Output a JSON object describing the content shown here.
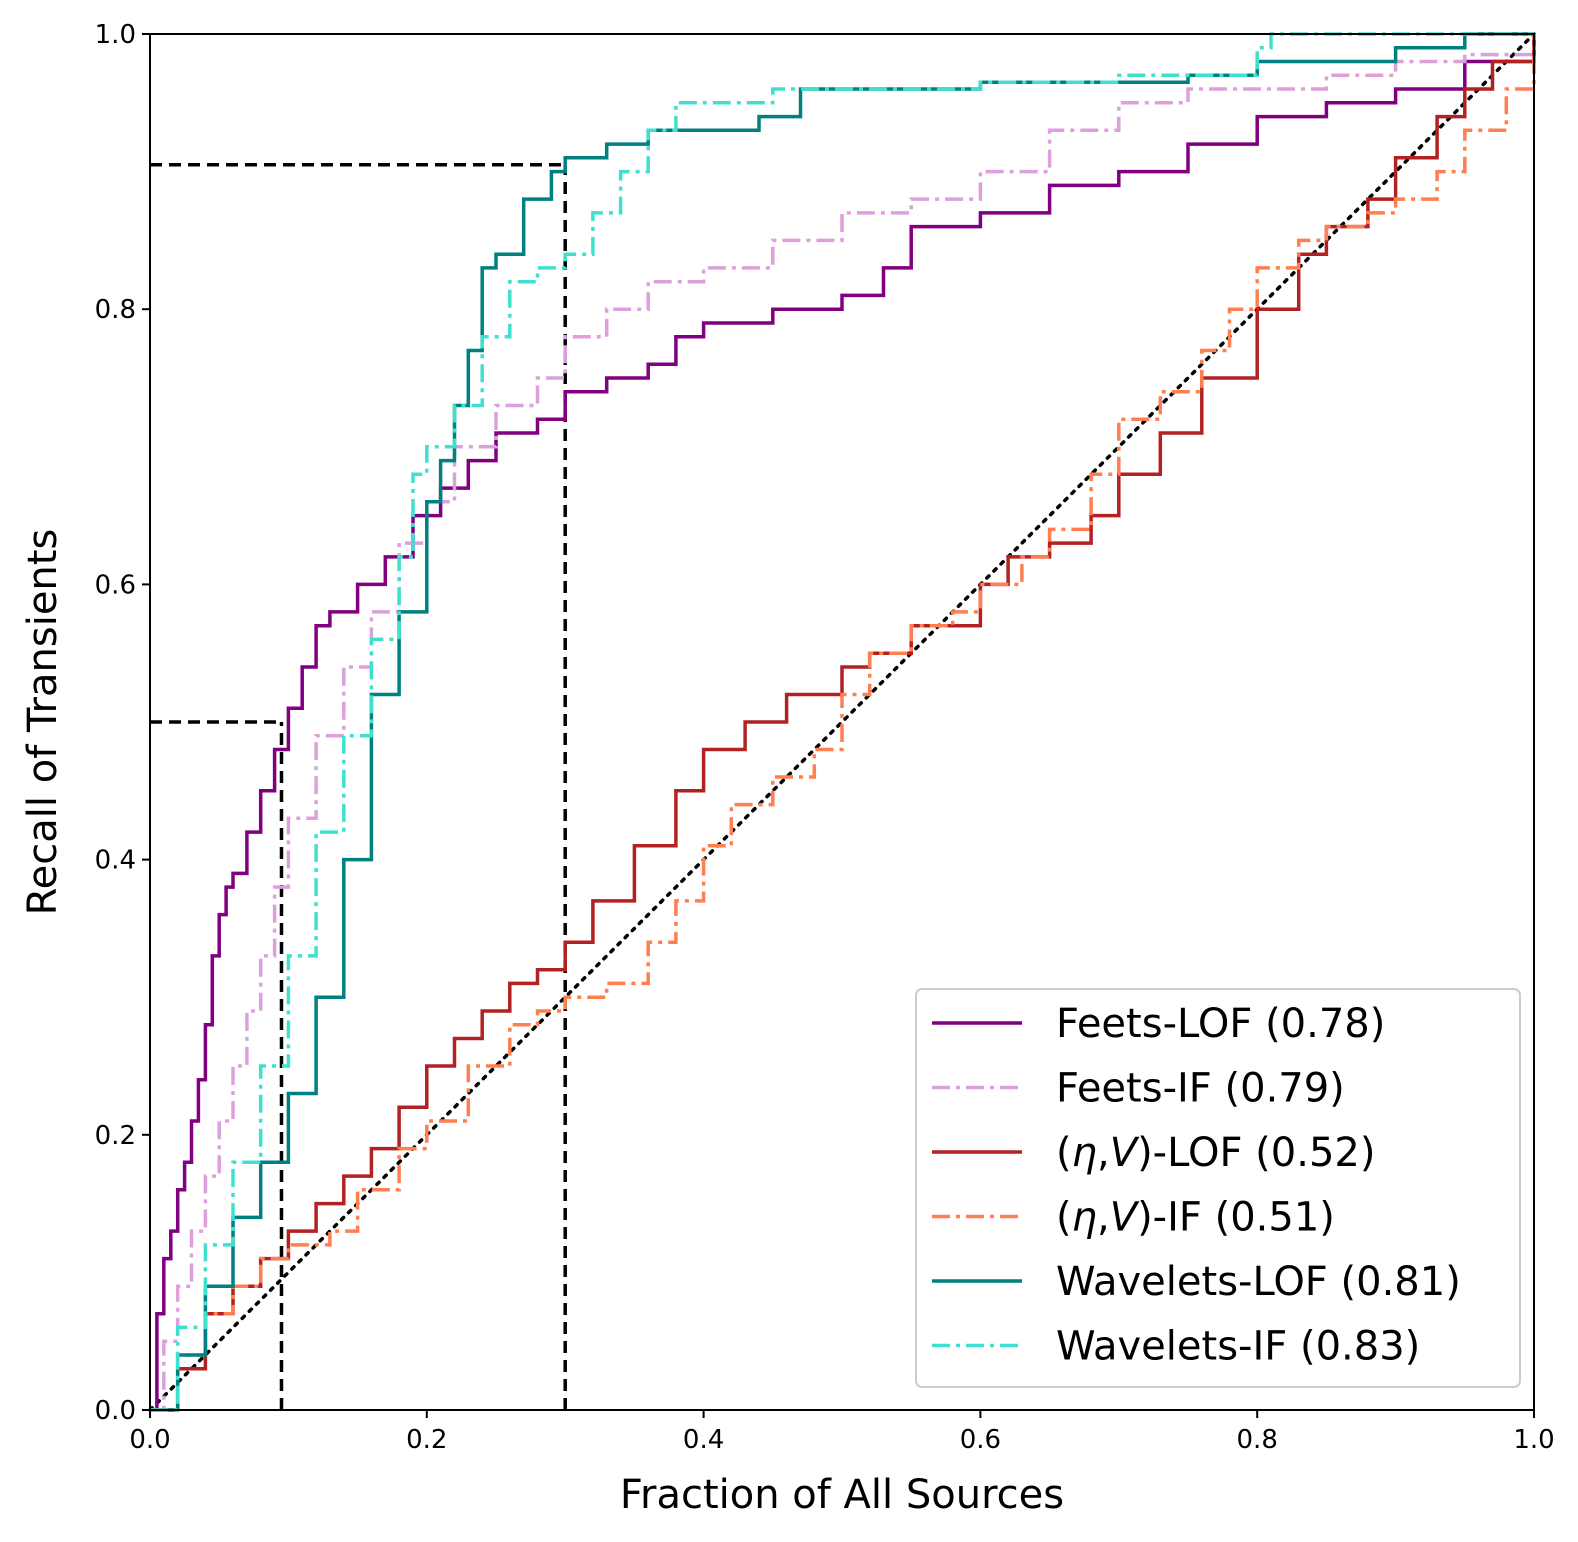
{
  "chart_data": {
    "type": "line",
    "title": "",
    "xlabel": "Fraction of All Sources",
    "ylabel": "Recall of Transients",
    "xlim": [
      0,
      1
    ],
    "ylim": [
      0,
      1
    ],
    "xticks": [
      "0.0",
      "0.2",
      "0.4",
      "0.6",
      "0.8",
      "1.0"
    ],
    "yticks": [
      "0.0",
      "0.2",
      "0.4",
      "0.6",
      "0.8",
      "1.0"
    ],
    "grid": false,
    "legend_position": "lower-right",
    "colors": {
      "feets_lof": "#800080",
      "feets_if": "#dda0dd",
      "eta_v_lof": "#b22222",
      "eta_v_if": "#ff7f50",
      "wavelets_lof": "#008080",
      "wavelets_if": "#40e0d0"
    },
    "series": [
      {
        "name": "Feets-LOF (0.78)",
        "name_parts": [
          "Feets-LOF (0.78)"
        ],
        "color": "#800080",
        "dash": "solid",
        "x": [
          0,
          0.005,
          0.01,
          0.015,
          0.02,
          0.025,
          0.03,
          0.035,
          0.04,
          0.045,
          0.05,
          0.055,
          0.06,
          0.07,
          0.08,
          0.09,
          0.1,
          0.11,
          0.12,
          0.13,
          0.15,
          0.17,
          0.19,
          0.21,
          0.23,
          0.25,
          0.28,
          0.3,
          0.33,
          0.36,
          0.38,
          0.4,
          0.45,
          0.5,
          0.53,
          0.55,
          0.6,
          0.65,
          0.7,
          0.75,
          0.8,
          0.85,
          0.9,
          0.95,
          1.0
        ],
        "y": [
          0,
          0.07,
          0.11,
          0.13,
          0.16,
          0.18,
          0.21,
          0.24,
          0.28,
          0.33,
          0.36,
          0.38,
          0.39,
          0.42,
          0.45,
          0.48,
          0.51,
          0.54,
          0.57,
          0.58,
          0.6,
          0.62,
          0.65,
          0.67,
          0.69,
          0.71,
          0.72,
          0.74,
          0.75,
          0.76,
          0.78,
          0.79,
          0.8,
          0.81,
          0.83,
          0.86,
          0.87,
          0.89,
          0.9,
          0.92,
          0.94,
          0.95,
          0.96,
          0.98,
          1.0
        ]
      },
      {
        "name": "Feets-IF (0.79)",
        "name_parts": [
          "Feets-IF (0.79)"
        ],
        "color": "#dda0dd",
        "dash": "dashdot",
        "x": [
          0,
          0.01,
          0.02,
          0.03,
          0.04,
          0.05,
          0.06,
          0.07,
          0.08,
          0.09,
          0.1,
          0.12,
          0.14,
          0.16,
          0.18,
          0.2,
          0.22,
          0.25,
          0.28,
          0.3,
          0.33,
          0.36,
          0.4,
          0.45,
          0.5,
          0.55,
          0.6,
          0.65,
          0.7,
          0.75,
          0.8,
          0.85,
          0.9,
          0.95,
          1.0
        ],
        "y": [
          0,
          0.05,
          0.09,
          0.13,
          0.17,
          0.21,
          0.25,
          0.29,
          0.33,
          0.38,
          0.43,
          0.49,
          0.54,
          0.58,
          0.63,
          0.66,
          0.7,
          0.73,
          0.75,
          0.78,
          0.8,
          0.82,
          0.83,
          0.85,
          0.87,
          0.88,
          0.9,
          0.93,
          0.95,
          0.96,
          0.96,
          0.97,
          0.98,
          0.985,
          1.0
        ]
      },
      {
        "name": "(η,V)-LOF (0.52)",
        "name_parts": [
          "(",
          "η",
          ",",
          "V",
          ")-LOF (0.52)"
        ],
        "color": "#b22222",
        "dash": "solid",
        "x": [
          0,
          0.02,
          0.04,
          0.06,
          0.08,
          0.1,
          0.12,
          0.14,
          0.16,
          0.18,
          0.2,
          0.22,
          0.24,
          0.26,
          0.28,
          0.3,
          0.32,
          0.35,
          0.38,
          0.4,
          0.43,
          0.46,
          0.5,
          0.52,
          0.55,
          0.6,
          0.62,
          0.65,
          0.68,
          0.7,
          0.73,
          0.76,
          0.8,
          0.83,
          0.85,
          0.88,
          0.9,
          0.93,
          0.95,
          0.97,
          1.0
        ],
        "y": [
          0,
          0.03,
          0.07,
          0.09,
          0.11,
          0.13,
          0.15,
          0.17,
          0.19,
          0.22,
          0.25,
          0.27,
          0.29,
          0.31,
          0.32,
          0.34,
          0.37,
          0.41,
          0.45,
          0.48,
          0.5,
          0.52,
          0.54,
          0.55,
          0.57,
          0.6,
          0.62,
          0.63,
          0.65,
          0.68,
          0.71,
          0.75,
          0.8,
          0.84,
          0.86,
          0.88,
          0.91,
          0.94,
          0.96,
          0.98,
          1.0
        ]
      },
      {
        "name": "(η,V)-IF (0.51)",
        "name_parts": [
          "(",
          "η",
          ",",
          "V",
          ")-IF (0.51)"
        ],
        "color": "#ff7f50",
        "dash": "dashdot",
        "x": [
          0,
          0.02,
          0.04,
          0.06,
          0.08,
          0.1,
          0.13,
          0.15,
          0.18,
          0.2,
          0.23,
          0.26,
          0.28,
          0.3,
          0.33,
          0.36,
          0.38,
          0.4,
          0.42,
          0.45,
          0.48,
          0.5,
          0.52,
          0.55,
          0.58,
          0.6,
          0.63,
          0.65,
          0.68,
          0.7,
          0.73,
          0.76,
          0.78,
          0.8,
          0.83,
          0.85,
          0.88,
          0.9,
          0.93,
          0.95,
          0.98,
          1.0
        ],
        "y": [
          0,
          0.04,
          0.07,
          0.09,
          0.11,
          0.12,
          0.13,
          0.16,
          0.19,
          0.21,
          0.25,
          0.28,
          0.29,
          0.3,
          0.31,
          0.34,
          0.37,
          0.41,
          0.44,
          0.46,
          0.48,
          0.52,
          0.55,
          0.57,
          0.58,
          0.6,
          0.62,
          0.64,
          0.68,
          0.72,
          0.74,
          0.77,
          0.8,
          0.83,
          0.85,
          0.86,
          0.87,
          0.88,
          0.9,
          0.93,
          0.96,
          1.0
        ]
      },
      {
        "name": "Wavelets-LOF (0.81)",
        "name_parts": [
          "Wavelets-LOF (0.81)"
        ],
        "color": "#008080",
        "dash": "solid",
        "x": [
          0,
          0.02,
          0.04,
          0.06,
          0.08,
          0.1,
          0.12,
          0.14,
          0.16,
          0.18,
          0.2,
          0.21,
          0.22,
          0.23,
          0.24,
          0.25,
          0.27,
          0.29,
          0.3,
          0.33,
          0.36,
          0.4,
          0.44,
          0.47,
          0.5,
          0.6,
          0.7,
          0.75,
          0.8,
          0.9,
          0.95,
          1.0
        ],
        "y": [
          0,
          0.04,
          0.09,
          0.14,
          0.18,
          0.23,
          0.3,
          0.4,
          0.52,
          0.58,
          0.66,
          0.69,
          0.73,
          0.77,
          0.83,
          0.84,
          0.88,
          0.9,
          0.91,
          0.92,
          0.93,
          0.93,
          0.94,
          0.96,
          0.96,
          0.965,
          0.965,
          0.97,
          0.98,
          0.99,
          1.0,
          1.0
        ]
      },
      {
        "name": "Wavelets-IF (0.83)",
        "name_parts": [
          "Wavelets-IF (0.83)"
        ],
        "color": "#40e0d0",
        "dash": "dashdot",
        "x": [
          0,
          0.02,
          0.04,
          0.06,
          0.08,
          0.1,
          0.12,
          0.14,
          0.16,
          0.18,
          0.19,
          0.2,
          0.22,
          0.24,
          0.26,
          0.28,
          0.3,
          0.32,
          0.34,
          0.36,
          0.38,
          0.4,
          0.45,
          0.5,
          0.6,
          0.7,
          0.8,
          0.81,
          0.9,
          1.0
        ],
        "y": [
          0,
          0.06,
          0.12,
          0.18,
          0.25,
          0.33,
          0.42,
          0.49,
          0.56,
          0.62,
          0.68,
          0.7,
          0.73,
          0.78,
          0.82,
          0.83,
          0.84,
          0.87,
          0.9,
          0.93,
          0.95,
          0.95,
          0.96,
          0.96,
          0.965,
          0.97,
          0.99,
          1.0,
          1.0,
          1.0
        ]
      }
    ],
    "reference_lines": [
      {
        "name": "random-diagonal",
        "style": "dotted",
        "color": "#000000",
        "x": [
          0,
          1
        ],
        "y": [
          0,
          1
        ]
      },
      {
        "name": "guide-10pct-vertical",
        "style": "dashed",
        "color": "#000000",
        "x": [
          0.095,
          0.095
        ],
        "y": [
          0,
          0.5
        ]
      },
      {
        "name": "guide-50pct-horizontal",
        "style": "dashed",
        "color": "#000000",
        "x": [
          0,
          0.095
        ],
        "y": [
          0.5,
          0.5
        ]
      },
      {
        "name": "guide-30pct-vertical",
        "style": "dashed",
        "color": "#000000",
        "x": [
          0.3,
          0.3
        ],
        "y": [
          0,
          0.905
        ]
      },
      {
        "name": "guide-90pct-horizontal",
        "style": "dashed",
        "color": "#000000",
        "x": [
          0,
          0.3
        ],
        "y": [
          0.905,
          0.905
        ]
      }
    ]
  }
}
